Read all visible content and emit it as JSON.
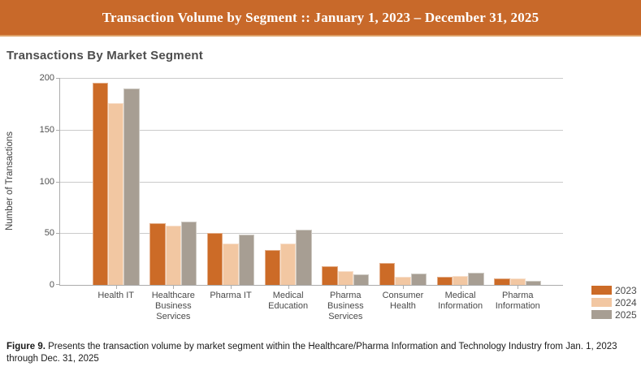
{
  "banner": {
    "title": "Transaction Volume by Segment :: January 1, 2023 – December 31, 2025",
    "bg_color": "#C8692A",
    "border_color": "#DDA067",
    "text_color": "#FFFFFF"
  },
  "chart_data": {
    "type": "bar",
    "title": "Transactions By Market Segment",
    "xlabel": "",
    "ylabel": "Number of Transactions",
    "ylim": [
      0,
      200
    ],
    "yticks": [
      0,
      50,
      100,
      150,
      200
    ],
    "grid": true,
    "legend_position": "bottom-right",
    "categories": [
      "Health IT",
      "Healthcare Business Services",
      "Pharma IT",
      "Medical Education",
      "Pharma Business Services",
      "Consumer Health",
      "Medical Information",
      "Pharma Information"
    ],
    "series": [
      {
        "name": "2023",
        "color": "#CC6B27",
        "values": [
          195,
          60,
          50,
          34,
          18,
          21,
          8,
          6
        ]
      },
      {
        "name": "2024",
        "color": "#F2C7A2",
        "values": [
          176,
          57,
          40,
          40,
          13,
          8,
          9,
          6
        ]
      },
      {
        "name": "2025",
        "color": "#A79E93",
        "values": [
          190,
          61,
          49,
          53,
          10,
          11,
          12,
          4
        ]
      }
    ]
  },
  "caption": {
    "label": "Figure 9.",
    "text": "Presents the transaction volume by market segment within the Healthcare/Pharma Information and Technology Industry from Jan. 1, 2023 through Dec. 31, 2025"
  }
}
